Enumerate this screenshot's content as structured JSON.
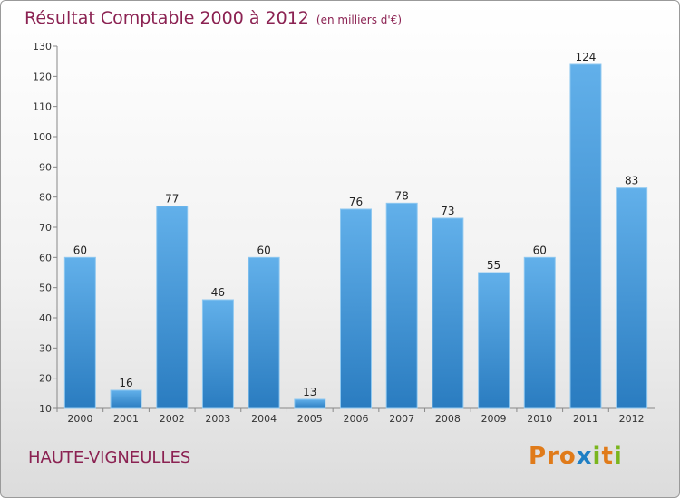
{
  "header": {
    "title": "Résultat Comptable 2000 à 2012",
    "unit": "(en milliers d'€)"
  },
  "footer": {
    "commune": "HAUTE-VIGNEULLES",
    "logo_letters": [
      "P",
      "r",
      "o",
      "x",
      "i",
      "t",
      "i"
    ]
  },
  "colors": {
    "title": "#8b2252",
    "bar_top": "#62b0ea",
    "bar_bottom": "#2a7cc0",
    "logo": [
      "#e07b1a",
      "#e07b1a",
      "#e07b1a",
      "#1f7fc4",
      "#7ab51d",
      "#e07b1a",
      "#7ab51d"
    ]
  },
  "chart_data": {
    "type": "bar",
    "title": "Résultat Comptable 2000 à 2012",
    "subtitle": "(en milliers d'€)",
    "categories": [
      "2000",
      "2001",
      "2002",
      "2003",
      "2004",
      "2005",
      "2006",
      "2007",
      "2008",
      "2009",
      "2010",
      "2011",
      "2012"
    ],
    "values": [
      60,
      16,
      77,
      46,
      60,
      13,
      76,
      78,
      73,
      55,
      60,
      124,
      83
    ],
    "ylim": [
      10,
      130
    ],
    "yticks": [
      10,
      20,
      30,
      40,
      50,
      60,
      70,
      80,
      90,
      100,
      110,
      120,
      130
    ],
    "grid": false,
    "legend": "none"
  }
}
